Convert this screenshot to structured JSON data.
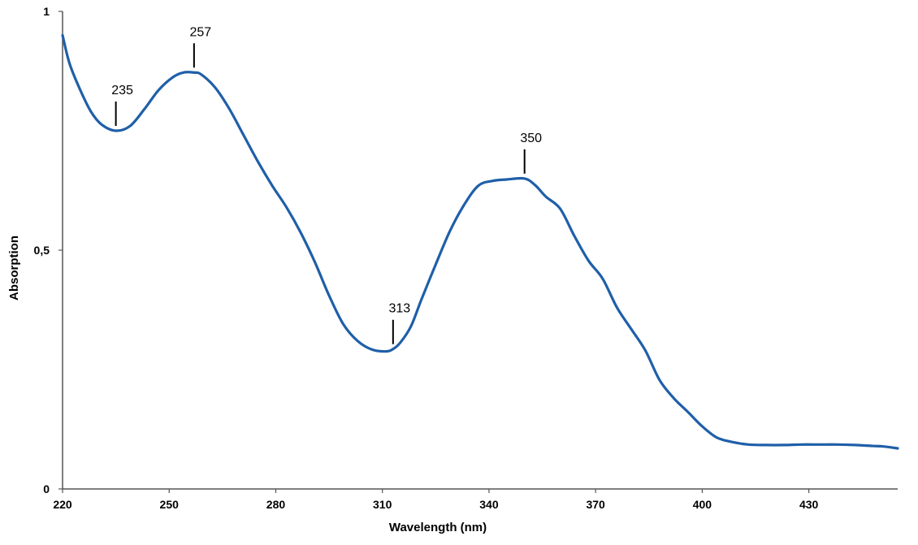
{
  "chart_data": {
    "type": "line",
    "xlabel": "Wavelength (nm)",
    "ylabel": "Absorption",
    "xlim": [
      220,
      455
    ],
    "ylim": [
      0,
      1
    ],
    "xticks": [
      "220",
      "250",
      "280",
      "310",
      "340",
      "370",
      "400",
      "430"
    ],
    "yticks": [
      "0",
      "0,5",
      "1"
    ],
    "grid": false,
    "line_color": "#1f5fa8",
    "series": [
      {
        "x": [
          220,
          222,
          225,
          228,
          231,
          235,
          239,
          243,
          247,
          251,
          254,
          257,
          259,
          263,
          267,
          271,
          275,
          279,
          283,
          287,
          291,
          295,
          299,
          303,
          307,
          311,
          313,
          315,
          318,
          321,
          325,
          329,
          333,
          337,
          341,
          345,
          350,
          353,
          356,
          360,
          364,
          368,
          372,
          376,
          380,
          384,
          388,
          392,
          396,
          400,
          404,
          408,
          413,
          418,
          423,
          428,
          433,
          438,
          443,
          448,
          451,
          455
        ],
        "y": [
          0.95,
          0.89,
          0.835,
          0.79,
          0.763,
          0.75,
          0.76,
          0.795,
          0.835,
          0.862,
          0.872,
          0.872,
          0.868,
          0.84,
          0.795,
          0.74,
          0.685,
          0.635,
          0.59,
          0.537,
          0.475,
          0.405,
          0.345,
          0.31,
          0.292,
          0.288,
          0.293,
          0.306,
          0.34,
          0.397,
          0.47,
          0.54,
          0.595,
          0.635,
          0.645,
          0.648,
          0.65,
          0.636,
          0.612,
          0.587,
          0.53,
          0.478,
          0.44,
          0.38,
          0.335,
          0.29,
          0.228,
          0.19,
          0.161,
          0.131,
          0.108,
          0.099,
          0.093,
          0.092,
          0.092,
          0.093,
          0.093,
          0.093,
          0.092,
          0.09,
          0.089,
          0.085
        ]
      }
    ],
    "annotations": [
      {
        "text": "235",
        "x": 235,
        "y": 0.75
      },
      {
        "text": "257",
        "x": 257,
        "y": 0.872
      },
      {
        "text": "313",
        "x": 313,
        "y": 0.293
      },
      {
        "text": "350",
        "x": 350,
        "y": 0.65
      }
    ]
  }
}
